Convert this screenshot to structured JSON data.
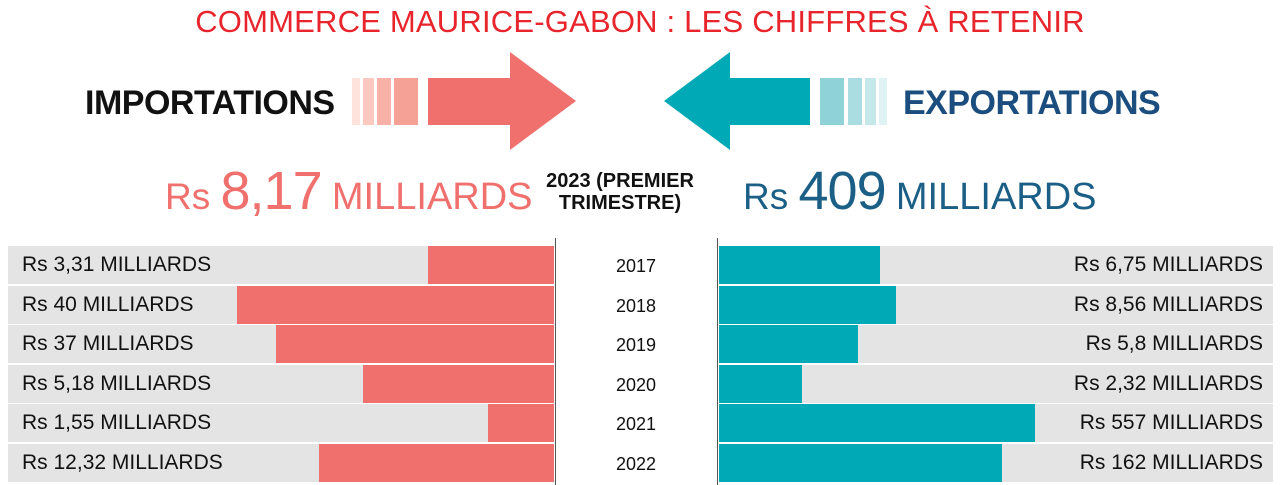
{
  "title": "COMMERCE MAURICE-GABON : LES CHIFFRES À RETENIR",
  "imports": {
    "label": "IMPORTATIONS",
    "total_prefix": "Rs",
    "total_value": "8,17",
    "total_unit": "MILLIARDS"
  },
  "exports": {
    "label": "EXPORTATIONS",
    "total_prefix": "Rs",
    "total_value": "409",
    "total_unit": "MILLIARDS"
  },
  "period_label_line1": "2023 (PREMIER",
  "period_label_line2": "TRIMESTRE)",
  "colors": {
    "title": "#e8242c",
    "imports": "#f0706e",
    "exports": "#00a9b6",
    "exports_text": "#1b4e7f",
    "row_background": "#e4e4e4"
  },
  "chart_data": {
    "type": "bar",
    "categories": [
      "2017",
      "2018",
      "2019",
      "2020",
      "2021",
      "2022"
    ],
    "series": [
      {
        "name": "IMPORTATIONS",
        "values": [
          3.31,
          40,
          37,
          5.18,
          1.55,
          12.32
        ],
        "labels": [
          "Rs 3,31 MILLIARDS",
          "Rs 40 MILLIARDS",
          "Rs 37 MILLIARDS",
          "Rs 5,18 MILLIARDS",
          "Rs 1,55 MILLIARDS",
          "Rs 12,32 MILLIARDS"
        ]
      },
      {
        "name": "EXPORTATIONS",
        "values": [
          6.75,
          8.56,
          5.8,
          2.32,
          557,
          162
        ],
        "labels": [
          "Rs 6,75 MILLIARDS",
          "Rs 8,56 MILLIARDS",
          "Rs 5,8 MILLIARDS",
          "Rs 2,32 MILLIARDS",
          "Rs 557 MILLIARDS",
          "Rs 162 MILLIARDS"
        ]
      }
    ],
    "bar_fill_fraction": {
      "IMPORTATIONS": [
        0.23,
        0.58,
        0.51,
        0.35,
        0.12,
        0.43
      ],
      "EXPORTATIONS": [
        0.29,
        0.32,
        0.25,
        0.15,
        0.57,
        0.51
      ]
    }
  }
}
